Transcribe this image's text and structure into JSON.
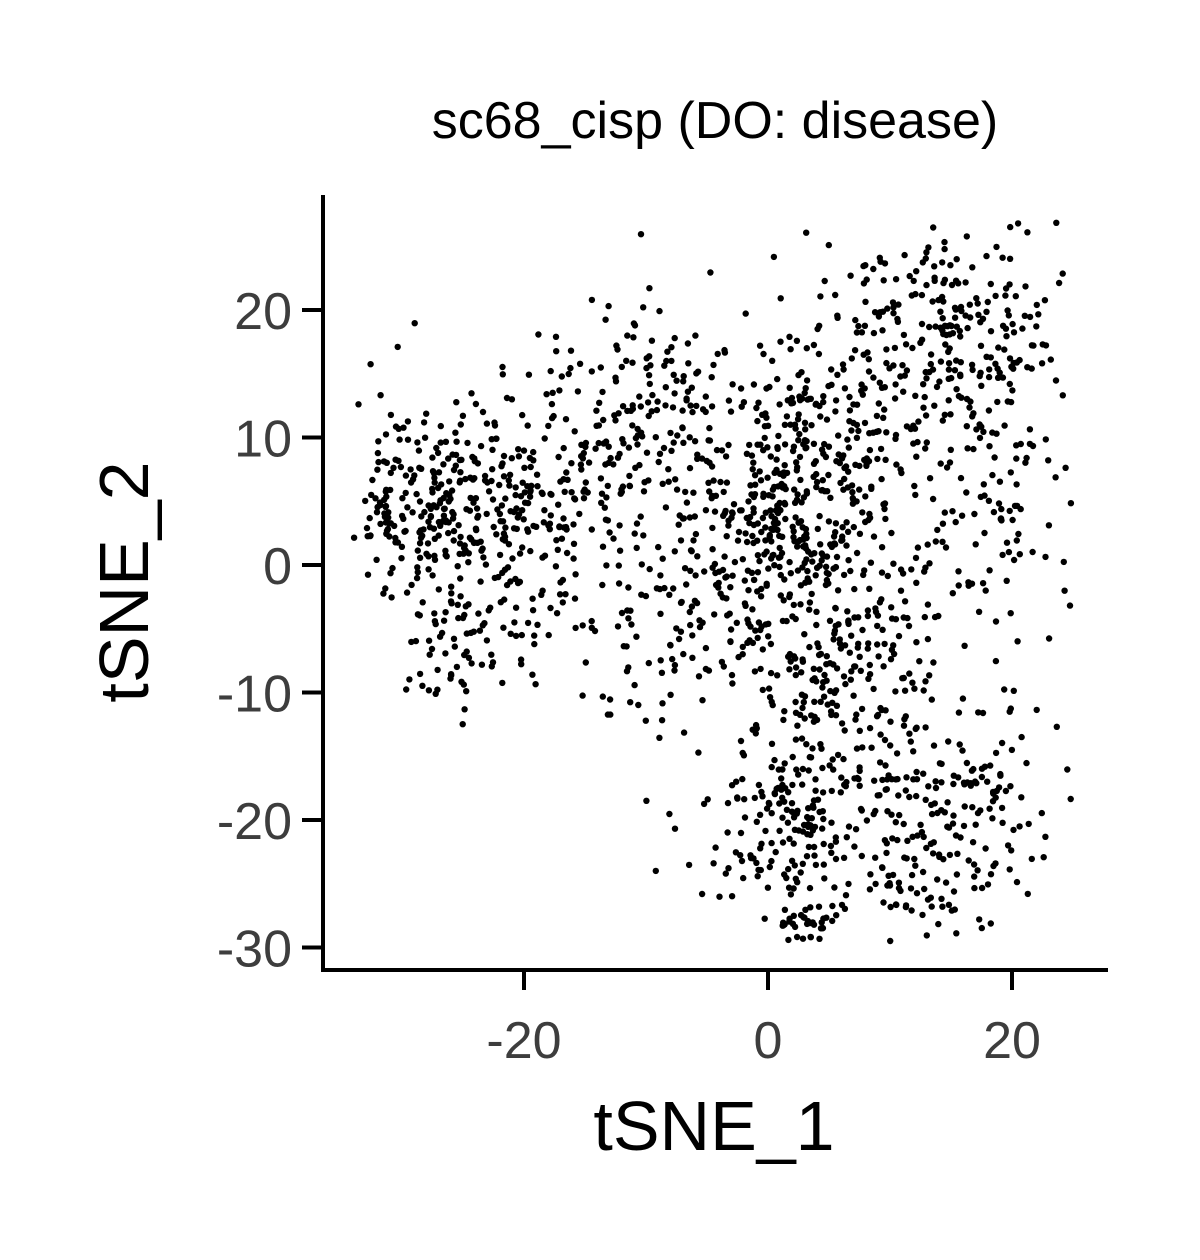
{
  "chart_data": {
    "type": "scatter",
    "title": "sc68_cisp (DO: disease)",
    "xlabel": "tSNE_1",
    "ylabel": "tSNE_2",
    "xlim": [
      -36.5,
      28
    ],
    "ylim": [
      -31.5,
      29
    ],
    "x_ticks": [
      -20,
      0,
      20
    ],
    "y_ticks": [
      -30,
      -20,
      -10,
      0,
      10,
      20
    ],
    "x_tick_labels": [
      "-20",
      "0",
      "20"
    ],
    "y_tick_labels": [
      "-30",
      "-20",
      "-10",
      "0",
      "10",
      "20"
    ],
    "grid": false,
    "legend": "none",
    "point_color": "#000000",
    "point_count_estimate": 2000,
    "clusters": [
      {
        "cx": -29,
        "cy": 5,
        "sx": 3.5,
        "sy": 4.5,
        "n": 210
      },
      {
        "cx": -21,
        "cy": 4,
        "sx": 3.5,
        "sy": 4.5,
        "n": 170
      },
      {
        "cx": -25,
        "cy": -6,
        "sx": 3.0,
        "sy": 3.0,
        "n": 70
      },
      {
        "cx": -13,
        "cy": 8,
        "sx": 4.0,
        "sy": 5.5,
        "n": 170
      },
      {
        "cx": -7,
        "cy": 14,
        "sx": 2.5,
        "sy": 3.0,
        "n": 50
      },
      {
        "cx": -10,
        "cy": -6,
        "sx": 3.0,
        "sy": 3.5,
        "n": 60
      },
      {
        "cx": 1,
        "cy": 2,
        "sx": 4.5,
        "sy": 5.5,
        "n": 380
      },
      {
        "cx": 6,
        "cy": 12,
        "sx": 5.0,
        "sy": 5.0,
        "n": 200
      },
      {
        "cx": 15,
        "cy": 20,
        "sx": 4.0,
        "sy": 4.0,
        "n": 170
      },
      {
        "cx": 18,
        "cy": 8,
        "sx": 3.5,
        "sy": 6.0,
        "n": 130
      },
      {
        "cx": 7,
        "cy": -8,
        "sx": 5.0,
        "sy": 5.0,
        "n": 200
      },
      {
        "cx": 3,
        "cy": -20,
        "sx": 4.5,
        "sy": 4.5,
        "n": 230
      },
      {
        "cx": 16,
        "cy": -19,
        "sx": 3.5,
        "sy": 4.5,
        "n": 140
      },
      {
        "cx": 3,
        "cy": -28,
        "sx": 1.2,
        "sy": 0.8,
        "n": 25
      },
      {
        "cx": 11,
        "cy": -25,
        "sx": 3.0,
        "sy": 2.0,
        "n": 40
      }
    ]
  }
}
